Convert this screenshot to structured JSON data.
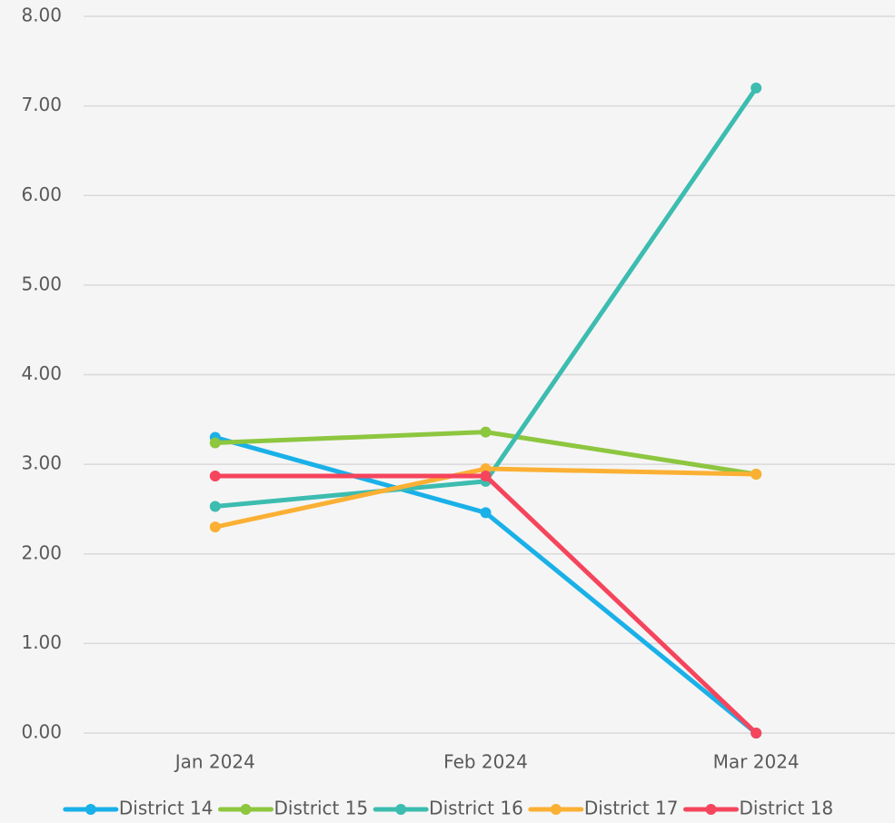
{
  "chart_data": {
    "type": "line",
    "categories": [
      "Jan 2024",
      "Feb 2024",
      "Mar 2024"
    ],
    "series": [
      {
        "name": "District 14",
        "color": "#1ab0e8",
        "values": [
          3.3,
          2.46,
          0
        ]
      },
      {
        "name": "District 15",
        "color": "#8dc63f",
        "values": [
          3.24,
          3.36,
          2.89
        ]
      },
      {
        "name": "District 16",
        "color": "#3dbcb0",
        "values": [
          2.53,
          2.81,
          7.2
        ]
      },
      {
        "name": "District 17",
        "color": "#fbb034",
        "values": [
          2.3,
          2.95,
          2.89
        ]
      },
      {
        "name": "District 18",
        "color": "#f5455c",
        "values": [
          2.87,
          2.87,
          0
        ]
      }
    ],
    "ylim": [
      0,
      8
    ],
    "yticks": [
      {
        "value": 0,
        "label": "0.00"
      },
      {
        "value": 1,
        "label": "1.00"
      },
      {
        "value": 2,
        "label": "2.00"
      },
      {
        "value": 3,
        "label": "3.00"
      },
      {
        "value": 4,
        "label": "4.00"
      },
      {
        "value": 5,
        "label": "5.00"
      },
      {
        "value": 6,
        "label": "6.00"
      },
      {
        "value": 7,
        "label": "7.00"
      },
      {
        "value": 8,
        "label": "8.00"
      }
    ],
    "grid": true,
    "legend": "bottom"
  }
}
